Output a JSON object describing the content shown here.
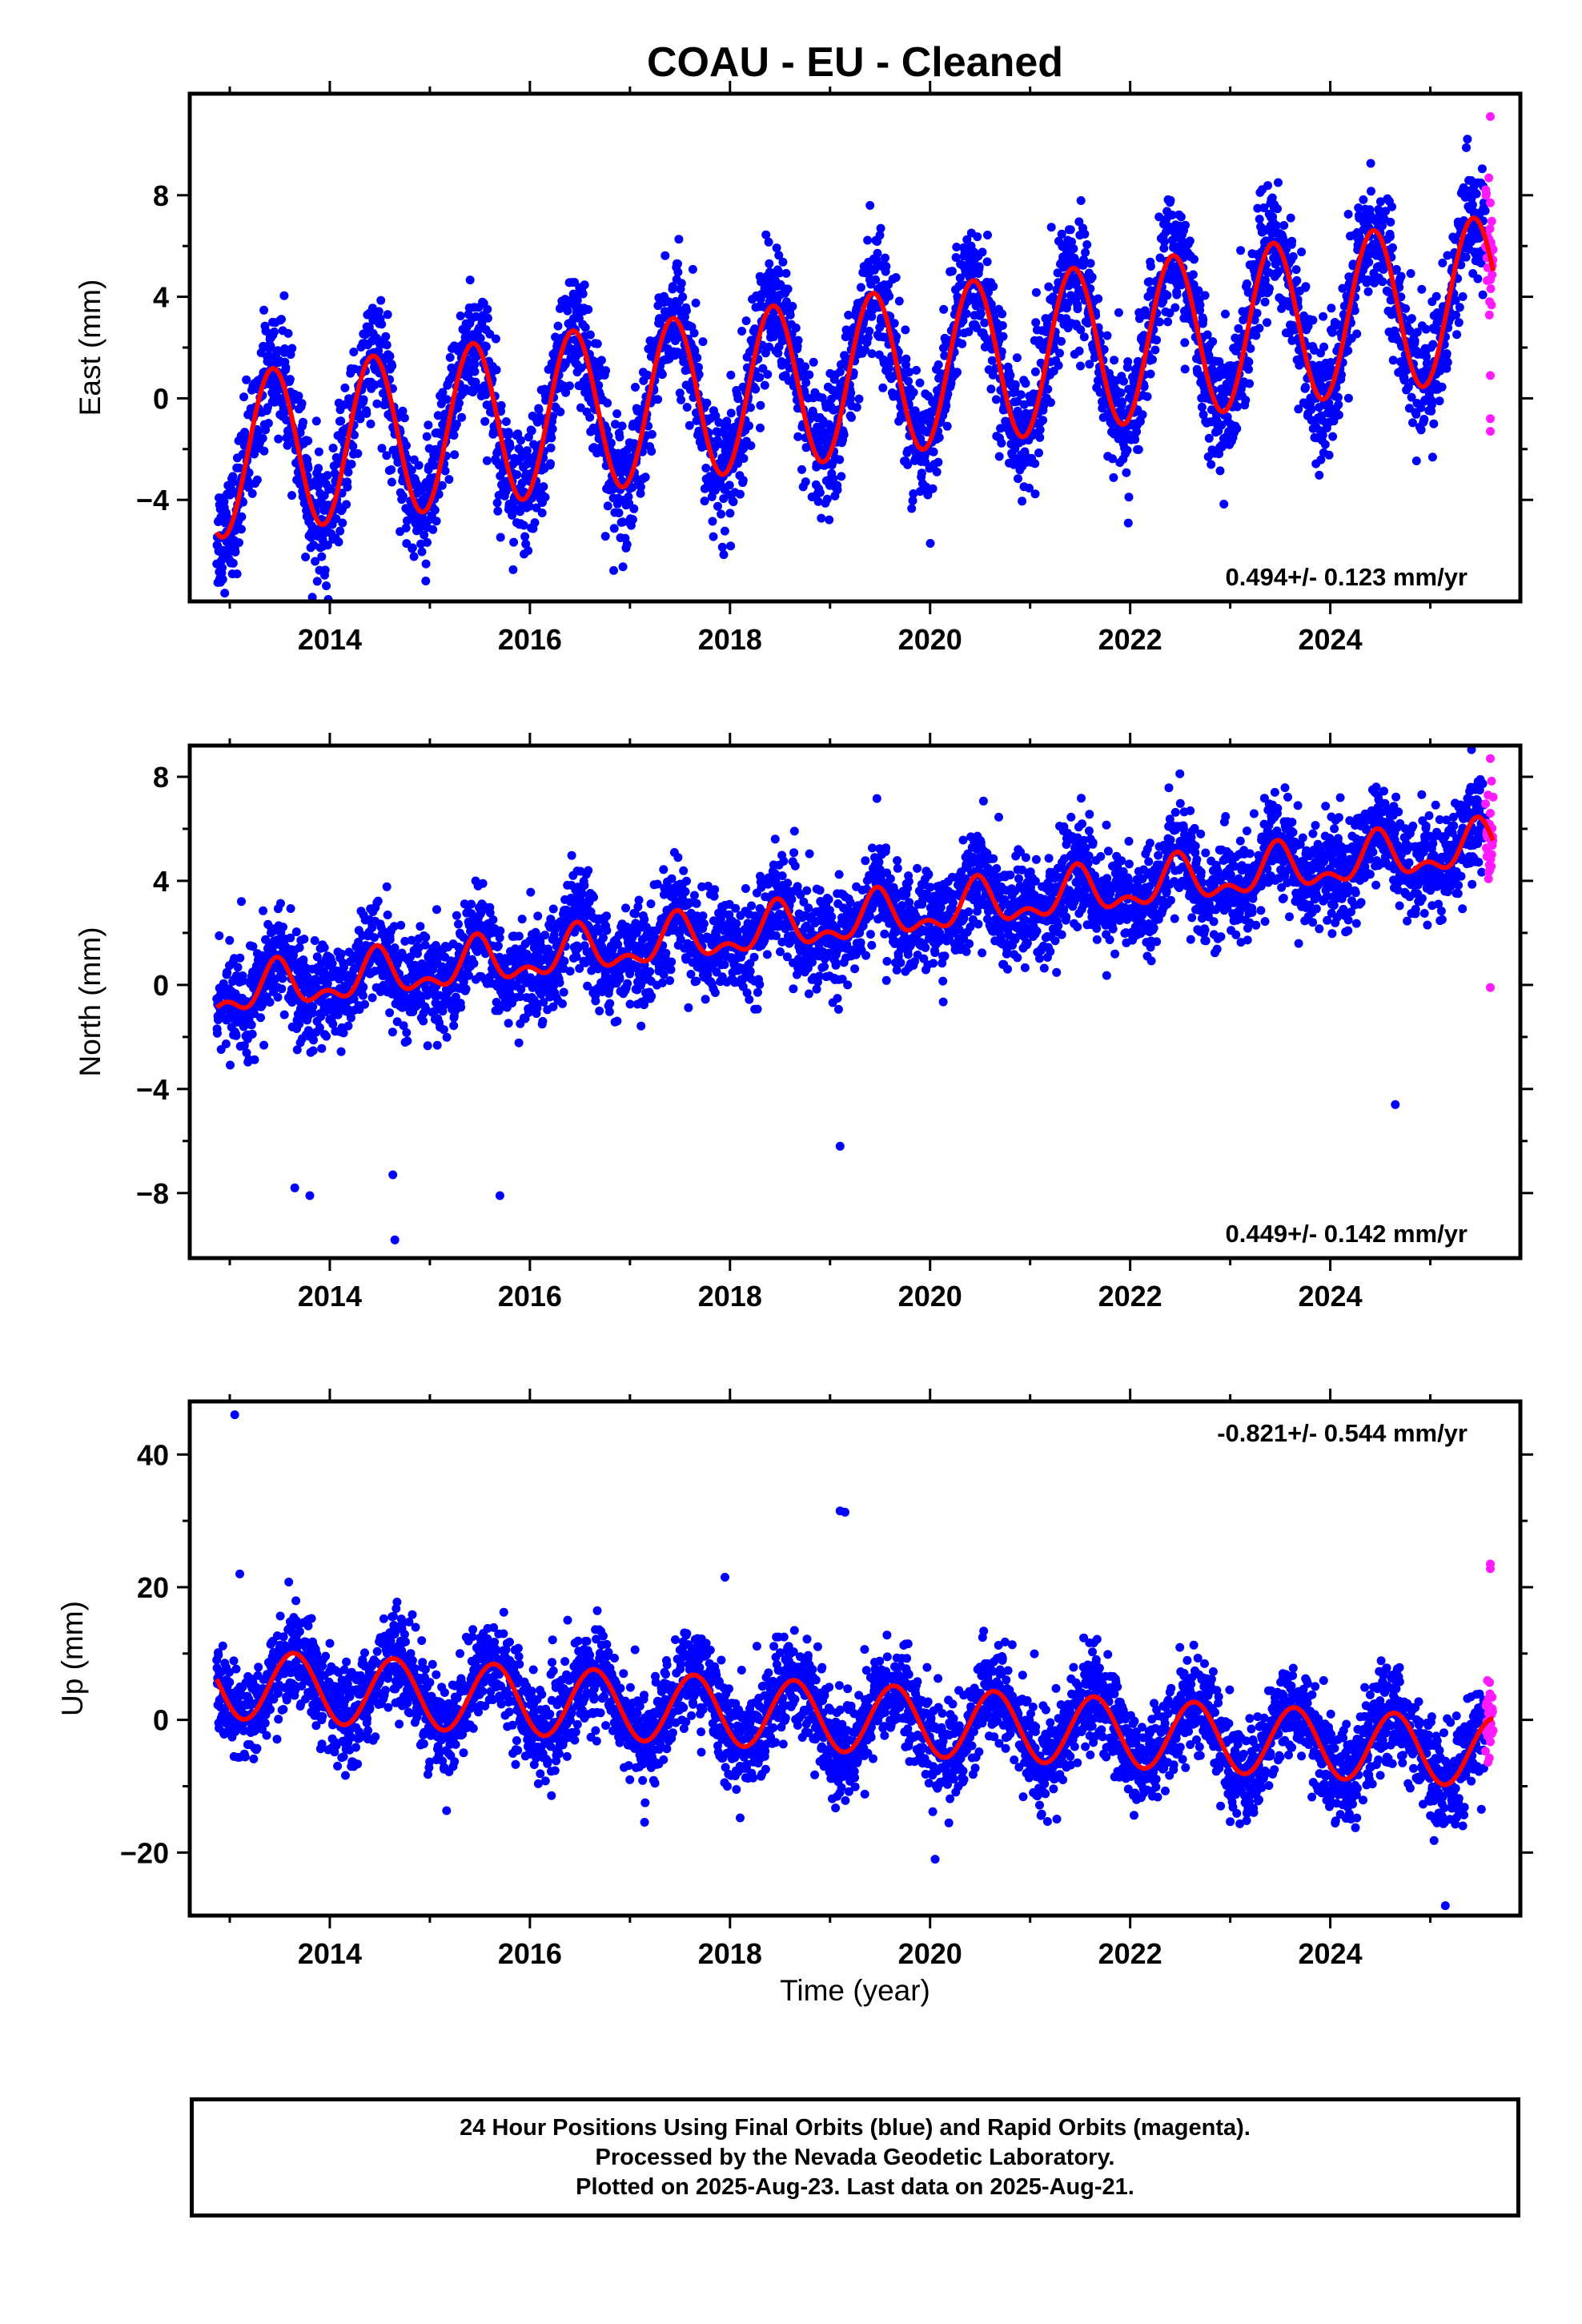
{
  "figure": {
    "title": "COAU  - EU - Cleaned",
    "xlabel": "Time (year)"
  },
  "colors": {
    "final_orbits": "#0000ff",
    "rapid_orbits": "#ff1aff",
    "model_fit": "#ff0000",
    "frame": "#000000"
  },
  "footer": {
    "line1": "24 Hour Positions Using Final Orbits (blue) and Rapid Orbits (magenta).",
    "line2": "Processed by the Nevada Geodetic Laboratory.",
    "line3": "Plotted on 2025-Aug-23. Last data on 2025-Aug-21."
  },
  "chart_data": [
    {
      "type": "scatter",
      "panel": "east",
      "ylabel": "East (mm)",
      "xlim": [
        2012.6,
        2025.9
      ],
      "ylim": [
        -8,
        12
      ],
      "xticks": [
        2014,
        2016,
        2018,
        2020,
        2022,
        2024
      ],
      "yticks": [
        -4,
        0,
        4,
        8
      ],
      "annotation": "0.494+/- 0.123 mm/yr",
      "annotation_position": "bottom-right",
      "data_span": [
        2012.87,
        2025.63
      ],
      "rapid_start": 2025.55,
      "model": {
        "start": 2012.87,
        "end": 2025.63,
        "offset": -2.3,
        "rate": 0.494,
        "seasonal_amplitude": 3.2,
        "seasonal_peak": 0.43
      },
      "scatter_spread": 1.2,
      "outliers": [
        {
          "x": 2019.4,
          "y": 7.6,
          "orbit": "final"
        },
        {
          "x": 2015.7,
          "y": -2.6,
          "orbit": "final"
        },
        {
          "x": 2025.6,
          "y": 11.1,
          "orbit": "rapid"
        },
        {
          "x": 2025.6,
          "y": 7.7,
          "orbit": "rapid"
        },
        {
          "x": 2025.6,
          "y": 0.9,
          "orbit": "rapid"
        },
        {
          "x": 2025.6,
          "y": -0.8,
          "orbit": "rapid"
        },
        {
          "x": 2025.6,
          "y": -1.3,
          "orbit": "rapid"
        }
      ]
    },
    {
      "type": "scatter",
      "panel": "north",
      "ylabel": "North (mm)",
      "xlim": [
        2012.6,
        2025.9
      ],
      "ylim": [
        -10.5,
        9.2
      ],
      "xticks": [
        2014,
        2016,
        2018,
        2020,
        2022,
        2024
      ],
      "yticks": [
        -8,
        -4,
        0,
        4,
        8
      ],
      "annotation": "0.449+/- 0.142 mm/yr",
      "annotation_position": "bottom-right",
      "data_span": [
        2012.87,
        2025.63
      ],
      "rapid_start": 2025.55,
      "model": {
        "start": 2012.87,
        "end": 2025.63,
        "offset": -0.4,
        "rate": 0.449,
        "seasonal_amplitude": 0.75,
        "seasonal_peak": 0.47,
        "semiannual_amplitude": 0.45
      },
      "scatter_spread": 0.95,
      "outliers": [
        {
          "x": 2015.53,
          "y": 3.9,
          "orbit": "final"
        },
        {
          "x": 2014.63,
          "y": -7.3,
          "orbit": "final"
        },
        {
          "x": 2014.65,
          "y": -9.8,
          "orbit": "final"
        },
        {
          "x": 2013.65,
          "y": -7.8,
          "orbit": "final"
        },
        {
          "x": 2013.8,
          "y": -8.1,
          "orbit": "final"
        },
        {
          "x": 2015.7,
          "y": -8.1,
          "orbit": "final"
        },
        {
          "x": 2019.1,
          "y": -6.2,
          "orbit": "final"
        },
        {
          "x": 2024.65,
          "y": -4.6,
          "orbit": "final"
        },
        {
          "x": 2024.1,
          "y": 7.2,
          "orbit": "final"
        },
        {
          "x": 2025.6,
          "y": 8.7,
          "orbit": "rapid"
        },
        {
          "x": 2025.6,
          "y": 6.6,
          "orbit": "rapid"
        },
        {
          "x": 2025.6,
          "y": -0.1,
          "orbit": "rapid"
        }
      ]
    },
    {
      "type": "scatter",
      "panel": "up",
      "ylabel": "Up (mm)",
      "xlim": [
        2012.6,
        2025.9
      ],
      "ylim": [
        -29.5,
        48
      ],
      "xticks": [
        2014,
        2016,
        2018,
        2020,
        2022,
        2024
      ],
      "yticks": [
        -20,
        0,
        20,
        40
      ],
      "annotation": "-0.821+/- 0.544 mm/yr",
      "annotation_position": "top-right",
      "data_span": [
        2012.87,
        2025.63
      ],
      "rapid_start": 2025.55,
      "model": {
        "start": 2012.87,
        "end": 2025.63,
        "offset": 5.5,
        "rate": -0.821,
        "seasonal_amplitude": 5.2,
        "seasonal_peak": 0.64
      },
      "scatter_spread": 3.6,
      "outliers": [
        {
          "x": 2013.05,
          "y": 46,
          "orbit": "final"
        },
        {
          "x": 2019.1,
          "y": 31.5,
          "orbit": "final"
        },
        {
          "x": 2019.15,
          "y": 31.3,
          "orbit": "final"
        },
        {
          "x": 2017.95,
          "y": 21.5,
          "orbit": "final"
        },
        {
          "x": 2013.1,
          "y": 22,
          "orbit": "final"
        },
        {
          "x": 2020.05,
          "y": -21,
          "orbit": "final"
        },
        {
          "x": 2025.15,
          "y": -28,
          "orbit": "final"
        },
        {
          "x": 2025.6,
          "y": 23.5,
          "orbit": "rapid"
        },
        {
          "x": 2025.6,
          "y": 22.8,
          "orbit": "rapid"
        }
      ]
    }
  ]
}
